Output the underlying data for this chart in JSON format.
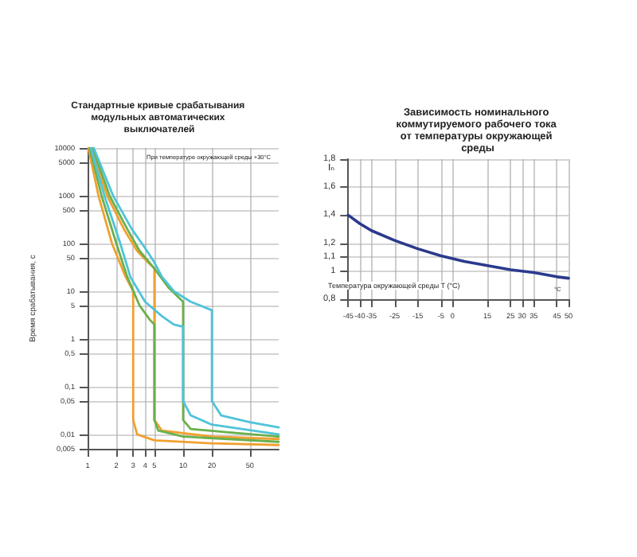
{
  "chart_data": [
    {
      "type": "line",
      "title": "Стандартные кривые срабатывания модульных автоматических выключателей",
      "ylabel": "Время срабатывания, с",
      "log": "xy",
      "grid": true,
      "marker": "none",
      "line_style": "solid",
      "annotations": [
        "При температуре окружающей среды +30°С"
      ],
      "xlim": [
        1,
        100
      ],
      "xticks": [
        1,
        2,
        3,
        4,
        5,
        10,
        20,
        50
      ],
      "ylim": [
        0.005,
        10000
      ],
      "yticks": [
        {
          "value": 0.005,
          "label": "0,005"
        },
        {
          "value": 0.01,
          "label": "0,01"
        },
        {
          "value": 0.05,
          "label": "0,05"
        },
        {
          "value": 0.1,
          "label": "0,1"
        },
        {
          "value": 0.5,
          "label": "0,5"
        },
        1,
        5,
        10,
        50,
        100,
        500,
        1000,
        5000,
        10000
      ],
      "series": [
        {
          "color": "#f0a030",
          "x": [
            1.02,
            1.3,
            1.8,
            2.5,
            3,
            3,
            3.3,
            5,
            20,
            100
          ],
          "values": [
            10000,
            1000,
            100,
            20,
            10,
            0.02,
            0.01,
            0.0075,
            0.0065,
            0.006
          ]
        },
        {
          "color": "#f0a030",
          "x": [
            1.1,
            1.6,
            2.4,
            3.3,
            4.3,
            5,
            5,
            6,
            20,
            100
          ],
          "values": [
            10000,
            1000,
            200,
            70,
            40,
            30,
            0.02,
            0.012,
            0.009,
            0.008
          ]
        },
        {
          "color": "#6ab04c",
          "x": [
            1.05,
            1.4,
            2,
            2.6,
            3.5,
            4.5,
            5,
            5,
            5.5,
            10,
            100
          ],
          "values": [
            10000,
            1000,
            100,
            20,
            5,
            2.5,
            2,
            0.02,
            0.012,
            0.009,
            0.007
          ]
        },
        {
          "color": "#6ab04c",
          "x": [
            1.13,
            1.7,
            2.6,
            3.5,
            5,
            7,
            10,
            10,
            12,
            30,
            100
          ],
          "values": [
            10000,
            1000,
            200,
            70,
            30,
            12,
            6,
            0.02,
            0.013,
            0.011,
            0.009
          ]
        },
        {
          "color": "#4fc3d9",
          "x": [
            1.08,
            1.5,
            2.2,
            2.8,
            4,
            6,
            8,
            10,
            10,
            12,
            20,
            100
          ],
          "values": [
            10000,
            1000,
            100,
            20,
            6,
            3,
            2,
            1.8,
            0.05,
            0.025,
            0.016,
            0.01
          ]
        },
        {
          "color": "#4fc3d9",
          "x": [
            1.16,
            1.85,
            2.9,
            4,
            5,
            6,
            8,
            12,
            20,
            20,
            25,
            50,
            100
          ],
          "values": [
            10000,
            1000,
            200,
            80,
            40,
            20,
            10,
            6,
            4,
            0.05,
            0.025,
            0.018,
            0.014
          ]
        }
      ]
    },
    {
      "type": "line",
      "title": "Зависимость номинального коммутируемого рабочего тока от температуры окружающей среды",
      "xlabel": "Температура окружающей среды T (°C)",
      "ylabel": "Iₙ",
      "grid": true,
      "marker": "none",
      "line_style": "solid",
      "annotations": [
        "°C"
      ],
      "xlim": [
        -45,
        50
      ],
      "xticks": [
        -45,
        -40,
        -35,
        -25,
        -15,
        -5,
        0,
        15,
        25,
        30,
        35,
        45,
        50
      ],
      "ylim": [
        0.8,
        1.8
      ],
      "yticks": [
        {
          "value": 0.8,
          "label": "0,8"
        },
        1,
        {
          "value": 1.1,
          "label": "1,1"
        },
        {
          "value": 1.2,
          "label": "1,2"
        },
        {
          "value": 1.4,
          "label": "1,4"
        },
        {
          "value": 1.6,
          "label": "1,6"
        },
        {
          "value": 1.8,
          "label": "1,8"
        }
      ],
      "x": [
        -45,
        -40,
        -35,
        -25,
        -15,
        -5,
        5,
        15,
        25,
        30,
        35,
        45,
        50
      ],
      "series": [
        {
          "color": "#2b3a8c",
          "values": [
            1.4,
            1.34,
            1.29,
            1.22,
            1.16,
            1.11,
            1.07,
            1.04,
            1.01,
            1.0,
            0.99,
            0.96,
            0.95
          ]
        }
      ]
    }
  ]
}
